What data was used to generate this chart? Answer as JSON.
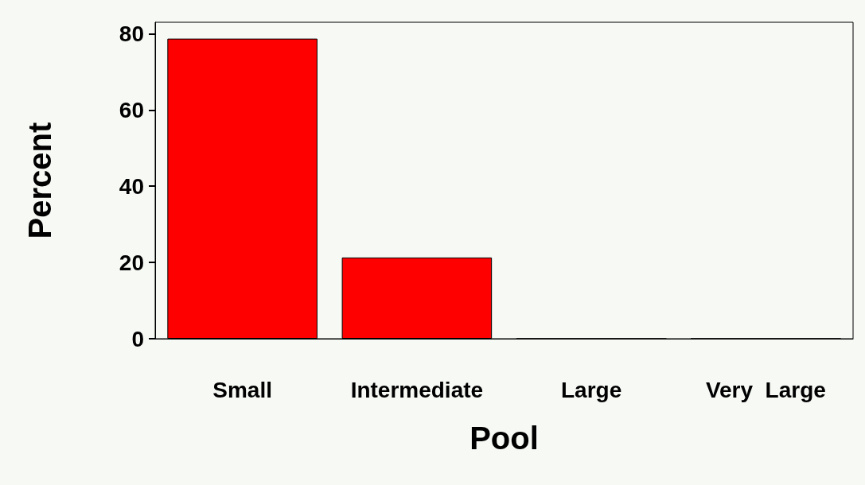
{
  "chart_data": {
    "type": "bar",
    "xlabel": "Pool",
    "ylabel": "Percent",
    "categories": [
      "Small",
      "Intermediate",
      "Large",
      "Very  Large"
    ],
    "values": [
      78.7,
      21.3,
      0,
      0
    ],
    "color": "#ff0000",
    "ylim": [
      0,
      83
    ],
    "yticks": [
      0,
      20,
      40,
      60,
      80
    ],
    "grid": false
  }
}
